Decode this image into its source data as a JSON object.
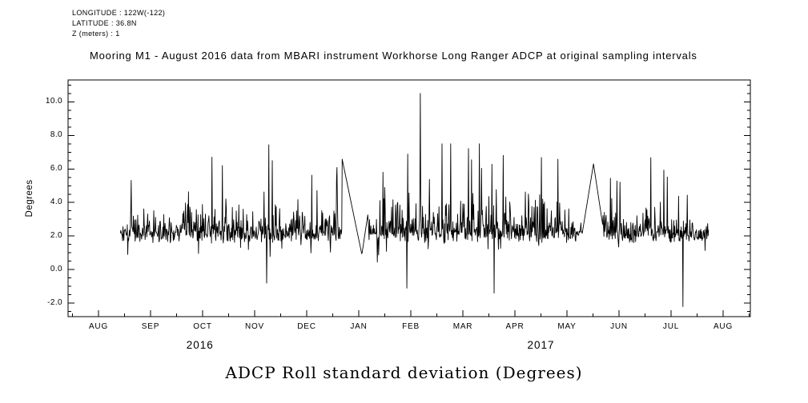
{
  "header": {
    "longitude": "LONGITUDE : 122W(-122)",
    "latitude": "LATITUDE : 36.8N",
    "z": "Z (meters) : 1"
  },
  "chart_data": {
    "type": "line",
    "title": "Mooring M1 - August 2016 data from MBARI instrument Workhorse Long Ranger ADCP at original sampling intervals",
    "xlabel": "",
    "ylabel": "Degrees",
    "caption": "ADCP Roll standard deviation (Degrees)",
    "grid": false,
    "legend": "none",
    "x_axis": {
      "tick_labels": [
        "AUG",
        "SEP",
        "OCT",
        "NOV",
        "DEC",
        "JAN",
        "FEB",
        "MAR",
        "APR",
        "MAY",
        "JUN",
        "JUL",
        "AUG"
      ],
      "year_labels": [
        {
          "text": "2016",
          "month_frac": 1.95
        },
        {
          "text": "2017",
          "month_frac": 8.5
        }
      ]
    },
    "y_axis": {
      "tick_values": [
        10.0,
        8.0,
        6.0,
        4.0,
        2.0,
        0.0,
        -2.0
      ],
      "lim": [
        -2.8,
        11.3
      ],
      "minor_step": 0.5
    },
    "series": {
      "name": "ADCP Roll standard deviation",
      "color": "#000000",
      "start_month_frac": 0.42,
      "end_month_frac": 11.72,
      "points_per_month": 120,
      "seed": 20160816,
      "baseline_mean": 2.1,
      "baseline_band": [
        1.5,
        3.0
      ],
      "typical_spike_max": 7.5,
      "max_peak": {
        "month_frac": 6.18,
        "value": 10.5
      },
      "negative_spikes": [
        {
          "month_frac": 3.23,
          "value": -0.8
        },
        {
          "month_frac": 5.92,
          "value": -1.1
        },
        {
          "month_frac": 7.6,
          "value": -1.4
        },
        {
          "month_frac": 11.23,
          "value": -2.2
        }
      ],
      "gap_segments": [
        {
          "anchors": [
            {
              "month_frac": 4.68,
              "value": 6.6
            },
            {
              "month_frac": 5.06,
              "value": 0.9
            },
            {
              "month_frac": 5.18,
              "value": 3.4
            }
          ]
        },
        {
          "anchors": [
            {
              "month_frac": 9.29,
              "value": 2.1
            },
            {
              "month_frac": 9.51,
              "value": 6.3
            },
            {
              "month_frac": 9.69,
              "value": 2.6
            }
          ]
        }
      ]
    }
  }
}
